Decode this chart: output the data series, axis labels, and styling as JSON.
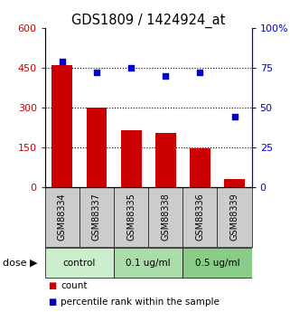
{
  "title": "GDS1809 / 1424924_at",
  "samples": [
    "GSM88334",
    "GSM88337",
    "GSM88335",
    "GSM88338",
    "GSM88336",
    "GSM88339"
  ],
  "bar_values": [
    460,
    300,
    215,
    205,
    145,
    30
  ],
  "percentile_values": [
    79,
    72,
    75,
    70,
    72,
    44
  ],
  "bar_color": "#cc0000",
  "dot_color": "#0000cc",
  "left_ylim": [
    0,
    600
  ],
  "right_ylim": [
    0,
    100
  ],
  "left_yticks": [
    0,
    150,
    300,
    450,
    600
  ],
  "left_yticklabels": [
    "0",
    "150",
    "300",
    "450",
    "600"
  ],
  "right_yticks": [
    0,
    25,
    50,
    75,
    100
  ],
  "right_yticklabels": [
    "0",
    "25",
    "50",
    "75",
    "100%"
  ],
  "dose_groups": [
    {
      "label": "control",
      "color": "#cceecc",
      "start": 0,
      "end": 2
    },
    {
      "label": "0.1 ug/ml",
      "color": "#aaddaa",
      "start": 2,
      "end": 4
    },
    {
      "label": "0.5 ug/ml",
      "color": "#88cc88",
      "start": 4,
      "end": 6
    }
  ],
  "dose_label": "dose",
  "legend_count": "count",
  "legend_percentile": "percentile rank within the sample",
  "tick_color_left": "#cc0000",
  "tick_color_right": "#0000cc",
  "bg_color": "#ffffff",
  "sample_bg_color": "#cccccc"
}
